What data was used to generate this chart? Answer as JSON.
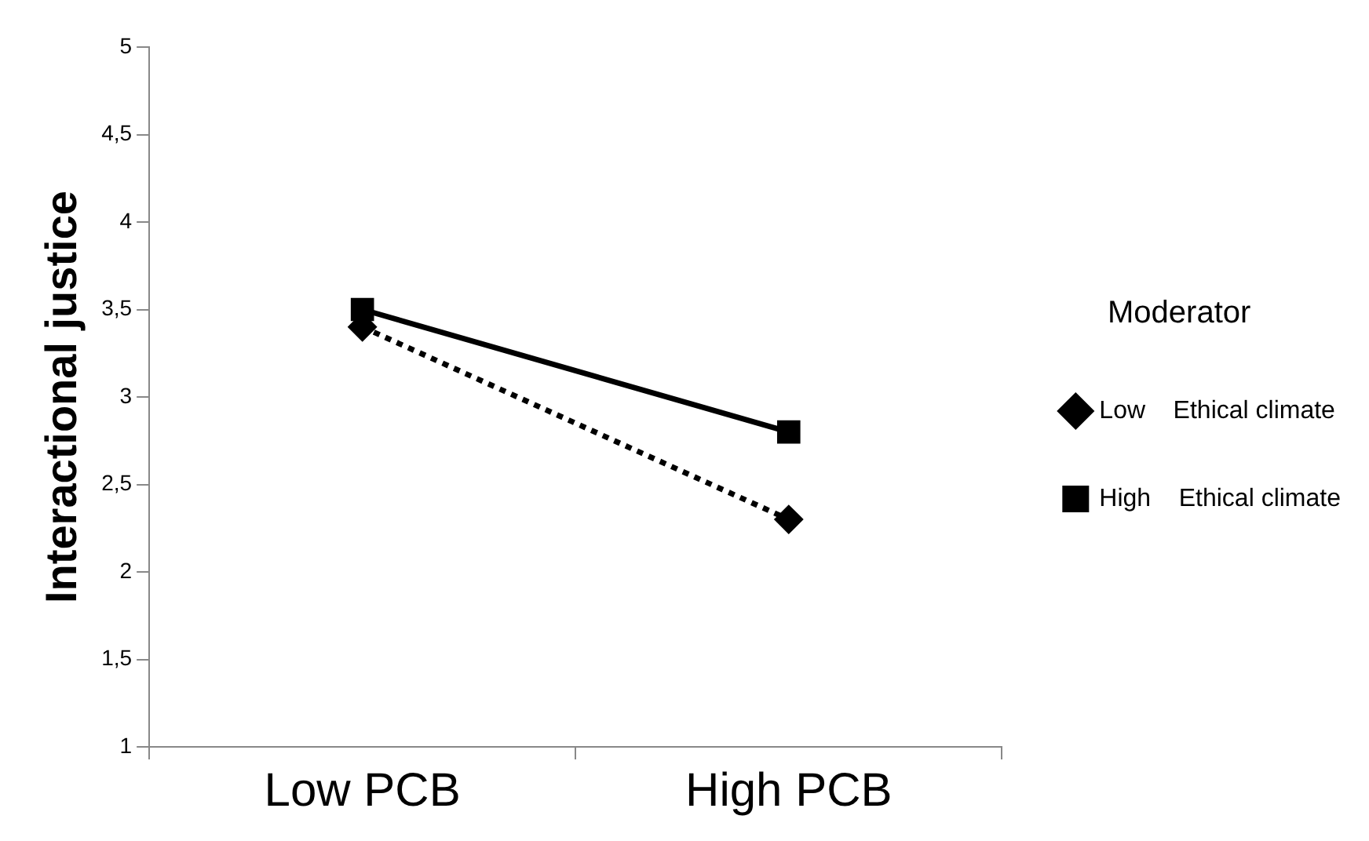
{
  "chart_data": {
    "type": "line",
    "ylabel": "Interactional justice",
    "legend_title": "Moderator",
    "legend": "right",
    "grid": false,
    "categories": [
      "Low PCB",
      "High PCB"
    ],
    "ylim": [
      1,
      5
    ],
    "yticks": [
      {
        "value": 1,
        "label": "1"
      },
      {
        "value": 1.5,
        "label": "1,5"
      },
      {
        "value": 2,
        "label": "2"
      },
      {
        "value": 2.5,
        "label": "2,5"
      },
      {
        "value": 3,
        "label": "3"
      },
      {
        "value": 3.5,
        "label": "3,5"
      },
      {
        "value": 4,
        "label": "4"
      },
      {
        "value": 4.5,
        "label": "4,5"
      },
      {
        "value": 5,
        "label": "5"
      }
    ],
    "series": [
      {
        "name": "Low    Ethical climate",
        "color": "#000000",
        "values": [
          3.4,
          2.3
        ],
        "marker": "diamond",
        "line_style": "dotted"
      },
      {
        "name": "High    Ethical climate",
        "color": "#000000",
        "values": [
          3.5,
          2.8
        ],
        "marker": "square",
        "line_style": "solid"
      }
    ]
  }
}
